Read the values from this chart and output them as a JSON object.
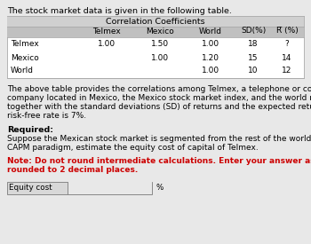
{
  "title_text": "The stock market data is given in the following table.",
  "table_title": "Correlation Coefficients",
  "col_headers": [
    "Telmex",
    "Mexico",
    "World",
    "SD(%)",
    "R̅ (%)"
  ],
  "row_labels": [
    "Telmex",
    "Mexico",
    "World"
  ],
  "table_data": [
    [
      "1.00",
      "1.50",
      "1.00",
      "18",
      "?"
    ],
    [
      "",
      "1.00",
      "1.20",
      "15",
      "14"
    ],
    [
      "",
      "",
      "1.00",
      "10",
      "12"
    ]
  ],
  "body_text1": "The above table provides the correlations among Telmex, a telephone or communication",
  "body_text2": "company located in Mexico, the Mexico stock market index, and the world market index,",
  "body_text3": "together with the standard deviations (SD) of returns and the expected returns ( R̅ ). The",
  "body_text4": "risk-free rate is 7%.",
  "required_label": "Required:",
  "required_text1": "Suppose the Mexican stock market is segmented from the rest of the world. Using the",
  "required_text2": "CAPM paradigm, estimate the equity cost of capital of Telmex.",
  "note_text1": "Note: Do not round intermediate calculations. Enter your answer as a percent",
  "note_text2": "rounded to 2 decimal places.",
  "input_label": "Equity cost",
  "input_suffix": "%",
  "bg_color": "#e8e8e8",
  "table_header_bg": "#b8b8b8",
  "table_body_bg": "#ffffff",
  "note_color": "#cc0000",
  "text_color": "#000000",
  "font_size": 6.8,
  "table_font_size": 6.5
}
